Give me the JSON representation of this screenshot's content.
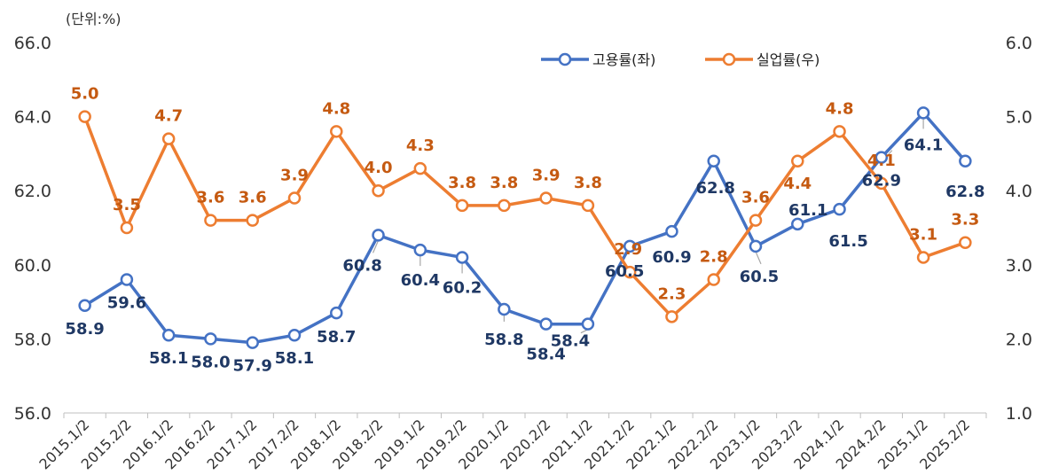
{
  "chart_data": {
    "type": "line",
    "unit_label": "(단위:%)",
    "categories": [
      "2015.1/2",
      "2015.2/2",
      "2016.1/2",
      "2016.2/2",
      "2017.1/2",
      "2017.2/2",
      "2018.1/2",
      "2018.2/2",
      "2019.1/2",
      "2019.2/2",
      "2020.1/2",
      "2020.2/2",
      "2021.1/2",
      "2021.2/2",
      "2022.1/2",
      "2022.2/2",
      "2023.1/2",
      "2023.2/2",
      "2024.1/2",
      "2024.2/2",
      "2025.1/2",
      "2025.2/2"
    ],
    "y_left": {
      "min": 56,
      "max": 66,
      "ticks": [
        "56.0",
        "58.0",
        "60.0",
        "62.0",
        "64.0",
        "66.0"
      ]
    },
    "y_right": {
      "min": 1,
      "max": 6,
      "ticks": [
        "1.0",
        "2.0",
        "3.0",
        "4.0",
        "5.0",
        "6.0"
      ]
    },
    "legend_position": "top-right",
    "grid": false,
    "series": [
      {
        "name": "고용률(좌)",
        "axis": "left",
        "color": "#4472C4",
        "label_color": "#1F3864",
        "values": [
          58.9,
          59.6,
          58.1,
          58.0,
          57.9,
          58.1,
          58.7,
          60.8,
          60.4,
          60.2,
          58.8,
          58.4,
          58.4,
          60.5,
          60.9,
          62.8,
          60.5,
          61.1,
          61.5,
          62.9,
          64.1,
          62.8
        ],
        "labels": [
          "58.9",
          "59.6",
          "58.1",
          "58.0",
          "57.9",
          "58.1",
          "58.7",
          "60.8",
          "60.4",
          "60.2",
          "58.8",
          "58.4",
          "58.4",
          "60.5",
          "60.9",
          "62.8",
          "60.5",
          "61.1",
          "61.5",
          "62.9",
          "64.1",
          "62.8"
        ]
      },
      {
        "name": "실업률(우)",
        "axis": "right",
        "color": "#ED7D31",
        "label_color": "#C55A11",
        "values": [
          5.0,
          3.5,
          4.7,
          3.6,
          3.6,
          3.9,
          4.8,
          4.0,
          4.3,
          3.8,
          3.8,
          3.9,
          3.8,
          2.9,
          2.3,
          2.8,
          3.6,
          4.4,
          4.8,
          4.1,
          3.1,
          3.3
        ],
        "labels": [
          "5.0",
          "3.5",
          "4.7",
          "3.6",
          "3.6",
          "3.9",
          "4.8",
          "4.0",
          "4.3",
          "3.8",
          "3.8",
          "3.9",
          "3.8",
          "2.9",
          "2.3",
          "2.8",
          "3.6",
          "4.4",
          "4.8",
          "4.1",
          "3.1",
          "3.3"
        ]
      }
    ]
  }
}
